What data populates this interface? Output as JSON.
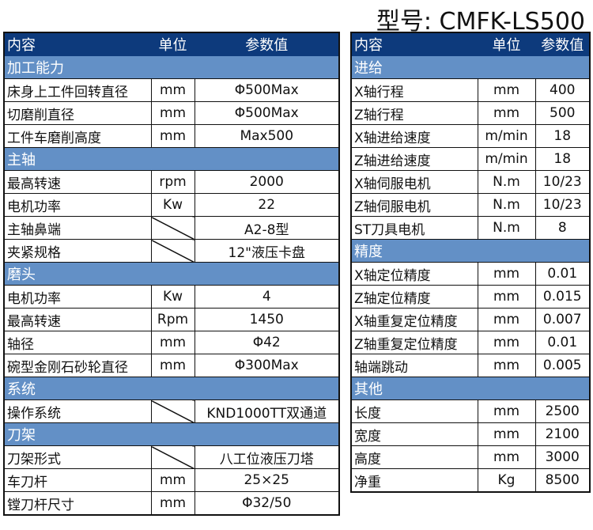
{
  "title": "型号: CMFK-LS500",
  "colors": {
    "header": "#0d3a7c",
    "section": "#6390c6"
  },
  "left": {
    "headers": [
      "内容",
      "单位",
      "参数值"
    ],
    "sections": [
      {
        "label": "加工能力",
        "rows": [
          [
            "床身上工件回转直径",
            "mm",
            "Φ500Max"
          ],
          [
            "切磨削直径",
            "mm",
            "Φ500Max"
          ],
          [
            "工件车磨削高度",
            "mm",
            "Max500"
          ]
        ]
      },
      {
        "label": "主轴",
        "rows": [
          [
            "最高转速",
            "rpm",
            "2000"
          ],
          [
            "电机功率",
            "Kw",
            "22"
          ],
          [
            "主轴鼻端",
            "",
            "A2-8型"
          ],
          [
            "夹紧规格",
            "",
            "12\"液压卡盘"
          ]
        ]
      },
      {
        "label": "磨头",
        "rows": [
          [
            "电机功率",
            "Kw",
            "4"
          ],
          [
            "最高转速",
            "Rpm",
            "1450"
          ],
          [
            "轴径",
            "mm",
            "Φ42"
          ],
          [
            "碗型金刚石砂轮直径",
            "mm",
            "Φ300Max"
          ]
        ]
      },
      {
        "label": "系统",
        "rows": [
          [
            "操作系统",
            "",
            "KND1000TT双通道"
          ]
        ]
      },
      {
        "label": "刀架",
        "rows": [
          [
            "刀架形式",
            "",
            "八工位液压刀塔"
          ],
          [
            "车刀杆",
            "mm",
            "25×25"
          ],
          [
            "镗刀杆尺寸",
            "mm",
            "Φ32/50"
          ]
        ]
      }
    ]
  },
  "right": {
    "headers": [
      "内容",
      "单位",
      "参数值"
    ],
    "sections": [
      {
        "label": "进给",
        "rows": [
          [
            "X轴行程",
            "mm",
            "400"
          ],
          [
            "Z轴行程",
            "mm",
            "500"
          ],
          [
            "X轴进给速度",
            "m/min",
            "18"
          ],
          [
            "Z轴进给速度",
            "m/min",
            "18"
          ],
          [
            "X轴伺服电机",
            "N.m",
            "10/23"
          ],
          [
            "Z轴伺服电机",
            "N.m",
            "10/23"
          ],
          [
            "ST刀具电机",
            "N.m",
            "8"
          ]
        ]
      },
      {
        "label": "精度",
        "rows": [
          [
            "X轴定位精度",
            "mm",
            "0.01"
          ],
          [
            "Z轴定位精度",
            "mm",
            "0.015"
          ],
          [
            "X轴重复定位精度",
            "mm",
            "0.007"
          ],
          [
            "Z轴重复定位精度",
            "mm",
            "0.01"
          ],
          [
            "轴端跳动",
            "mm",
            "0.005"
          ]
        ]
      },
      {
        "label": "其他",
        "rows": [
          [
            "长度",
            "mm",
            "2500"
          ],
          [
            "宽度",
            "mm",
            "2100"
          ],
          [
            "高度",
            "mm",
            "3000"
          ],
          [
            "净重",
            "Kg",
            "8500"
          ]
        ]
      }
    ]
  }
}
